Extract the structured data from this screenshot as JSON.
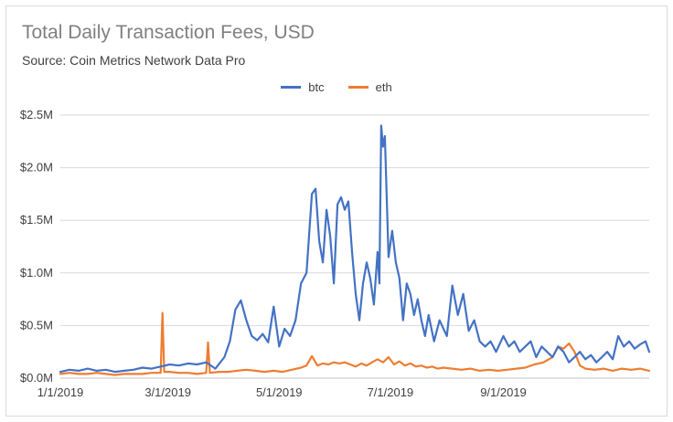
{
  "chart_data": {
    "type": "line",
    "title": "Total Daily Transaction Fees, USD",
    "subtitle": "Source: Coin Metrics Network Data Pro",
    "xlabel": "",
    "ylabel": "",
    "x_tick_labels": [
      "1/1/2019",
      "3/1/2019",
      "5/1/2019",
      "7/1/2019",
      "9/1/2019"
    ],
    "x_tick_dates": [
      "2019-01-01",
      "2019-03-01",
      "2019-05-01",
      "2019-07-01",
      "2019-09-01"
    ],
    "x_range": [
      "2019-01-01",
      "2019-11-20"
    ],
    "y_tick_labels": [
      "$0.0M",
      "$0.5M",
      "$1.0M",
      "$1.5M",
      "$2.0M",
      "$2.5M"
    ],
    "ylim": [
      0,
      2.5
    ],
    "y_ticks": [
      0,
      0.5,
      1.0,
      1.5,
      2.0,
      2.5
    ],
    "grid": true,
    "legend_position": "top-center",
    "series": [
      {
        "name": "btc",
        "color": "#4472c4",
        "points": [
          [
            "2019-01-01",
            0.06
          ],
          [
            "2019-01-06",
            0.08
          ],
          [
            "2019-01-11",
            0.07
          ],
          [
            "2019-01-16",
            0.09
          ],
          [
            "2019-01-21",
            0.07
          ],
          [
            "2019-01-26",
            0.08
          ],
          [
            "2019-01-31",
            0.06
          ],
          [
            "2019-02-05",
            0.07
          ],
          [
            "2019-02-10",
            0.08
          ],
          [
            "2019-02-15",
            0.1
          ],
          [
            "2019-02-20",
            0.09
          ],
          [
            "2019-02-25",
            0.11
          ],
          [
            "2019-03-02",
            0.13
          ],
          [
            "2019-03-07",
            0.12
          ],
          [
            "2019-03-12",
            0.14
          ],
          [
            "2019-03-17",
            0.13
          ],
          [
            "2019-03-22",
            0.15
          ],
          [
            "2019-03-27",
            0.09
          ],
          [
            "2019-04-01",
            0.2
          ],
          [
            "2019-04-04",
            0.35
          ],
          [
            "2019-04-07",
            0.65
          ],
          [
            "2019-04-10",
            0.74
          ],
          [
            "2019-04-13",
            0.55
          ],
          [
            "2019-04-16",
            0.4
          ],
          [
            "2019-04-19",
            0.36
          ],
          [
            "2019-04-22",
            0.42
          ],
          [
            "2019-04-25",
            0.34
          ],
          [
            "2019-04-28",
            0.68
          ],
          [
            "2019-05-01",
            0.3
          ],
          [
            "2019-05-04",
            0.47
          ],
          [
            "2019-05-07",
            0.4
          ],
          [
            "2019-05-10",
            0.55
          ],
          [
            "2019-05-13",
            0.9
          ],
          [
            "2019-05-16",
            1.0
          ],
          [
            "2019-05-19",
            1.75
          ],
          [
            "2019-05-21",
            1.8
          ],
          [
            "2019-05-23",
            1.3
          ],
          [
            "2019-05-25",
            1.1
          ],
          [
            "2019-05-27",
            1.6
          ],
          [
            "2019-05-29",
            1.35
          ],
          [
            "2019-05-31",
            0.9
          ],
          [
            "2019-06-02",
            1.65
          ],
          [
            "2019-06-04",
            1.72
          ],
          [
            "2019-06-06",
            1.6
          ],
          [
            "2019-06-08",
            1.68
          ],
          [
            "2019-06-10",
            1.2
          ],
          [
            "2019-06-12",
            0.8
          ],
          [
            "2019-06-14",
            0.55
          ],
          [
            "2019-06-16",
            0.9
          ],
          [
            "2019-06-18",
            1.1
          ],
          [
            "2019-06-20",
            0.95
          ],
          [
            "2019-06-22",
            0.7
          ],
          [
            "2019-06-24",
            1.2
          ],
          [
            "2019-06-25",
            0.9
          ],
          [
            "2019-06-26",
            2.4
          ],
          [
            "2019-06-27",
            2.2
          ],
          [
            "2019-06-28",
            2.3
          ],
          [
            "2019-06-30",
            1.15
          ],
          [
            "2019-07-02",
            1.4
          ],
          [
            "2019-07-04",
            1.1
          ],
          [
            "2019-07-06",
            0.95
          ],
          [
            "2019-07-08",
            0.55
          ],
          [
            "2019-07-10",
            0.9
          ],
          [
            "2019-07-12",
            0.8
          ],
          [
            "2019-07-14",
            0.6
          ],
          [
            "2019-07-16",
            0.75
          ],
          [
            "2019-07-18",
            0.55
          ],
          [
            "2019-07-20",
            0.4
          ],
          [
            "2019-07-22",
            0.6
          ],
          [
            "2019-07-25",
            0.35
          ],
          [
            "2019-07-28",
            0.55
          ],
          [
            "2019-08-01",
            0.4
          ],
          [
            "2019-08-04",
            0.88
          ],
          [
            "2019-08-07",
            0.6
          ],
          [
            "2019-08-10",
            0.8
          ],
          [
            "2019-08-13",
            0.45
          ],
          [
            "2019-08-16",
            0.55
          ],
          [
            "2019-08-19",
            0.35
          ],
          [
            "2019-08-22",
            0.3
          ],
          [
            "2019-08-25",
            0.35
          ],
          [
            "2019-08-28",
            0.25
          ],
          [
            "2019-09-01",
            0.4
          ],
          [
            "2019-09-04",
            0.3
          ],
          [
            "2019-09-07",
            0.35
          ],
          [
            "2019-09-10",
            0.25
          ],
          [
            "2019-09-13",
            0.3
          ],
          [
            "2019-09-16",
            0.35
          ],
          [
            "2019-09-19",
            0.2
          ],
          [
            "2019-09-22",
            0.3
          ],
          [
            "2019-09-25",
            0.25
          ],
          [
            "2019-09-28",
            0.2
          ],
          [
            "2019-10-01",
            0.3
          ],
          [
            "2019-10-04",
            0.25
          ],
          [
            "2019-10-07",
            0.15
          ],
          [
            "2019-10-10",
            0.2
          ],
          [
            "2019-10-13",
            0.25
          ],
          [
            "2019-10-16",
            0.18
          ],
          [
            "2019-10-19",
            0.22
          ],
          [
            "2019-10-22",
            0.15
          ],
          [
            "2019-10-25",
            0.2
          ],
          [
            "2019-10-28",
            0.25
          ],
          [
            "2019-10-31",
            0.18
          ],
          [
            "2019-11-03",
            0.4
          ],
          [
            "2019-11-06",
            0.3
          ],
          [
            "2019-11-09",
            0.35
          ],
          [
            "2019-11-12",
            0.28
          ],
          [
            "2019-11-15",
            0.32
          ],
          [
            "2019-11-18",
            0.35
          ],
          [
            "2019-11-20",
            0.25
          ]
        ]
      },
      {
        "name": "eth",
        "color": "#ed7d31",
        "points": [
          [
            "2019-01-01",
            0.04
          ],
          [
            "2019-01-06",
            0.05
          ],
          [
            "2019-01-11",
            0.04
          ],
          [
            "2019-01-16",
            0.04
          ],
          [
            "2019-01-21",
            0.05
          ],
          [
            "2019-01-26",
            0.04
          ],
          [
            "2019-01-31",
            0.03
          ],
          [
            "2019-02-05",
            0.04
          ],
          [
            "2019-02-10",
            0.04
          ],
          [
            "2019-02-15",
            0.04
          ],
          [
            "2019-02-20",
            0.05
          ],
          [
            "2019-02-25",
            0.05
          ],
          [
            "2019-02-26",
            0.62
          ],
          [
            "2019-02-27",
            0.06
          ],
          [
            "2019-03-02",
            0.06
          ],
          [
            "2019-03-07",
            0.05
          ],
          [
            "2019-03-12",
            0.05
          ],
          [
            "2019-03-17",
            0.04
          ],
          [
            "2019-03-22",
            0.05
          ],
          [
            "2019-03-23",
            0.34
          ],
          [
            "2019-03-24",
            0.05
          ],
          [
            "2019-03-29",
            0.06
          ],
          [
            "2019-04-03",
            0.06
          ],
          [
            "2019-04-08",
            0.07
          ],
          [
            "2019-04-13",
            0.08
          ],
          [
            "2019-04-18",
            0.07
          ],
          [
            "2019-04-23",
            0.06
          ],
          [
            "2019-04-28",
            0.07
          ],
          [
            "2019-05-03",
            0.06
          ],
          [
            "2019-05-08",
            0.08
          ],
          [
            "2019-05-13",
            0.1
          ],
          [
            "2019-05-16",
            0.12
          ],
          [
            "2019-05-19",
            0.21
          ],
          [
            "2019-05-22",
            0.12
          ],
          [
            "2019-05-25",
            0.14
          ],
          [
            "2019-05-28",
            0.13
          ],
          [
            "2019-05-31",
            0.15
          ],
          [
            "2019-06-03",
            0.14
          ],
          [
            "2019-06-06",
            0.15
          ],
          [
            "2019-06-09",
            0.13
          ],
          [
            "2019-06-12",
            0.11
          ],
          [
            "2019-06-15",
            0.14
          ],
          [
            "2019-06-18",
            0.12
          ],
          [
            "2019-06-21",
            0.15
          ],
          [
            "2019-06-24",
            0.18
          ],
          [
            "2019-06-27",
            0.15
          ],
          [
            "2019-06-30",
            0.2
          ],
          [
            "2019-07-03",
            0.13
          ],
          [
            "2019-07-06",
            0.16
          ],
          [
            "2019-07-09",
            0.12
          ],
          [
            "2019-07-12",
            0.14
          ],
          [
            "2019-07-15",
            0.11
          ],
          [
            "2019-07-18",
            0.12
          ],
          [
            "2019-07-21",
            0.1
          ],
          [
            "2019-07-24",
            0.11
          ],
          [
            "2019-07-27",
            0.09
          ],
          [
            "2019-07-30",
            0.1
          ],
          [
            "2019-08-04",
            0.09
          ],
          [
            "2019-08-09",
            0.08
          ],
          [
            "2019-08-14",
            0.09
          ],
          [
            "2019-08-19",
            0.07
          ],
          [
            "2019-08-24",
            0.08
          ],
          [
            "2019-08-29",
            0.07
          ],
          [
            "2019-09-03",
            0.08
          ],
          [
            "2019-09-08",
            0.09
          ],
          [
            "2019-09-13",
            0.1
          ],
          [
            "2019-09-18",
            0.13
          ],
          [
            "2019-09-23",
            0.15
          ],
          [
            "2019-09-28",
            0.2
          ],
          [
            "2019-10-01",
            0.3
          ],
          [
            "2019-10-04",
            0.28
          ],
          [
            "2019-10-07",
            0.33
          ],
          [
            "2019-10-10",
            0.25
          ],
          [
            "2019-10-13",
            0.12
          ],
          [
            "2019-10-16",
            0.09
          ],
          [
            "2019-10-21",
            0.08
          ],
          [
            "2019-10-26",
            0.09
          ],
          [
            "2019-10-31",
            0.07
          ],
          [
            "2019-11-05",
            0.09
          ],
          [
            "2019-11-10",
            0.08
          ],
          [
            "2019-11-15",
            0.09
          ],
          [
            "2019-11-20",
            0.07
          ]
        ]
      }
    ]
  }
}
